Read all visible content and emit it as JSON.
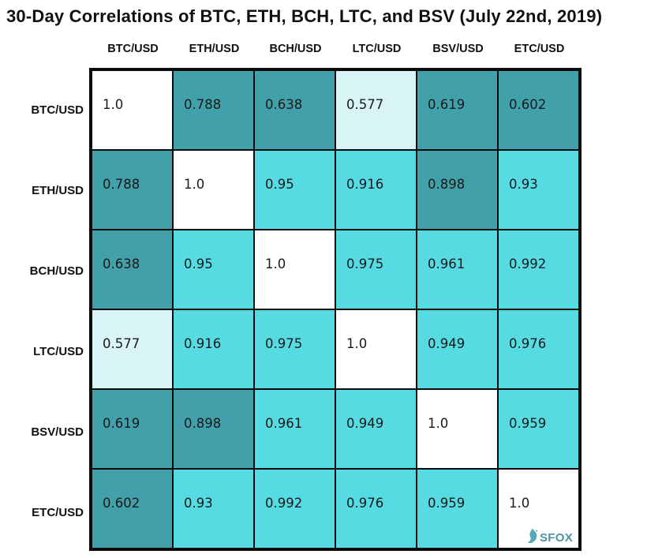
{
  "chart_data": {
    "type": "heatmap",
    "title": "30-Day Correlations of BTC, ETH, BCH, LTC, and BSV (July 22nd, 2019)",
    "columns": [
      "BTC/USD",
      "ETH/USD",
      "BCH/USD",
      "LTC/USD",
      "BSV/USD",
      "ETC/USD"
    ],
    "rows": [
      "BTC/USD",
      "ETH/USD",
      "BCH/USD",
      "LTC/USD",
      "BSV/USD",
      "ETC/USD"
    ],
    "values": [
      [
        1.0,
        0.788,
        0.638,
        0.577,
        0.619,
        0.602
      ],
      [
        0.788,
        1.0,
        0.95,
        0.916,
        0.898,
        0.93
      ],
      [
        0.638,
        0.95,
        1.0,
        0.975,
        0.961,
        0.992
      ],
      [
        0.577,
        0.916,
        0.975,
        1.0,
        0.949,
        0.976
      ],
      [
        0.619,
        0.898,
        0.961,
        0.949,
        1.0,
        0.959
      ],
      [
        0.602,
        0.93,
        0.992,
        0.976,
        0.959,
        1.0
      ]
    ],
    "labels": [
      [
        "1.0",
        "0.788",
        "0.638",
        "0.577",
        "0.619",
        "0.602"
      ],
      [
        "0.788",
        "1.0",
        "0.95",
        "0.916",
        "0.898",
        "0.93"
      ],
      [
        "0.638",
        "0.95",
        "1.0",
        "0.975",
        "0.961",
        "0.992"
      ],
      [
        "0.577",
        "0.916",
        "0.975",
        "1.0",
        "0.949",
        "0.976"
      ],
      [
        "0.619",
        "0.898",
        "0.961",
        "0.949",
        "1.0",
        "0.959"
      ],
      [
        "0.602",
        "0.93",
        "0.992",
        "0.976",
        "0.959",
        "1.0"
      ]
    ],
    "cell_colors": [
      [
        "#ffffff",
        "#42a0aa",
        "#42a0aa",
        "#d8f4f7",
        "#42a0aa",
        "#42a0aa"
      ],
      [
        "#42a0aa",
        "#ffffff",
        "#56dbe2",
        "#56dbe2",
        "#42a0aa",
        "#56dbe2"
      ],
      [
        "#42a0aa",
        "#56dbe2",
        "#ffffff",
        "#56dbe2",
        "#56dbe2",
        "#56dbe2"
      ],
      [
        "#d8f4f7",
        "#56dbe2",
        "#56dbe2",
        "#ffffff",
        "#56dbe2",
        "#56dbe2"
      ],
      [
        "#42a0aa",
        "#42a0aa",
        "#56dbe2",
        "#56dbe2",
        "#ffffff",
        "#56dbe2"
      ],
      [
        "#42a0aa",
        "#56dbe2",
        "#56dbe2",
        "#56dbe2",
        "#56dbe2",
        "#ffffff"
      ]
    ],
    "palette": {
      "diagonal": "#ffffff",
      "low": "#d8f4f7",
      "mid": "#42a0aa",
      "high": "#56dbe2",
      "gridline": "#0b0b0b",
      "value_text": "#1a1a1a"
    },
    "value_range": [
      0.577,
      1.0
    ],
    "legend": "none",
    "grid": true
  },
  "logo": {
    "text": "SFOX",
    "color": "#4d93a2"
  }
}
